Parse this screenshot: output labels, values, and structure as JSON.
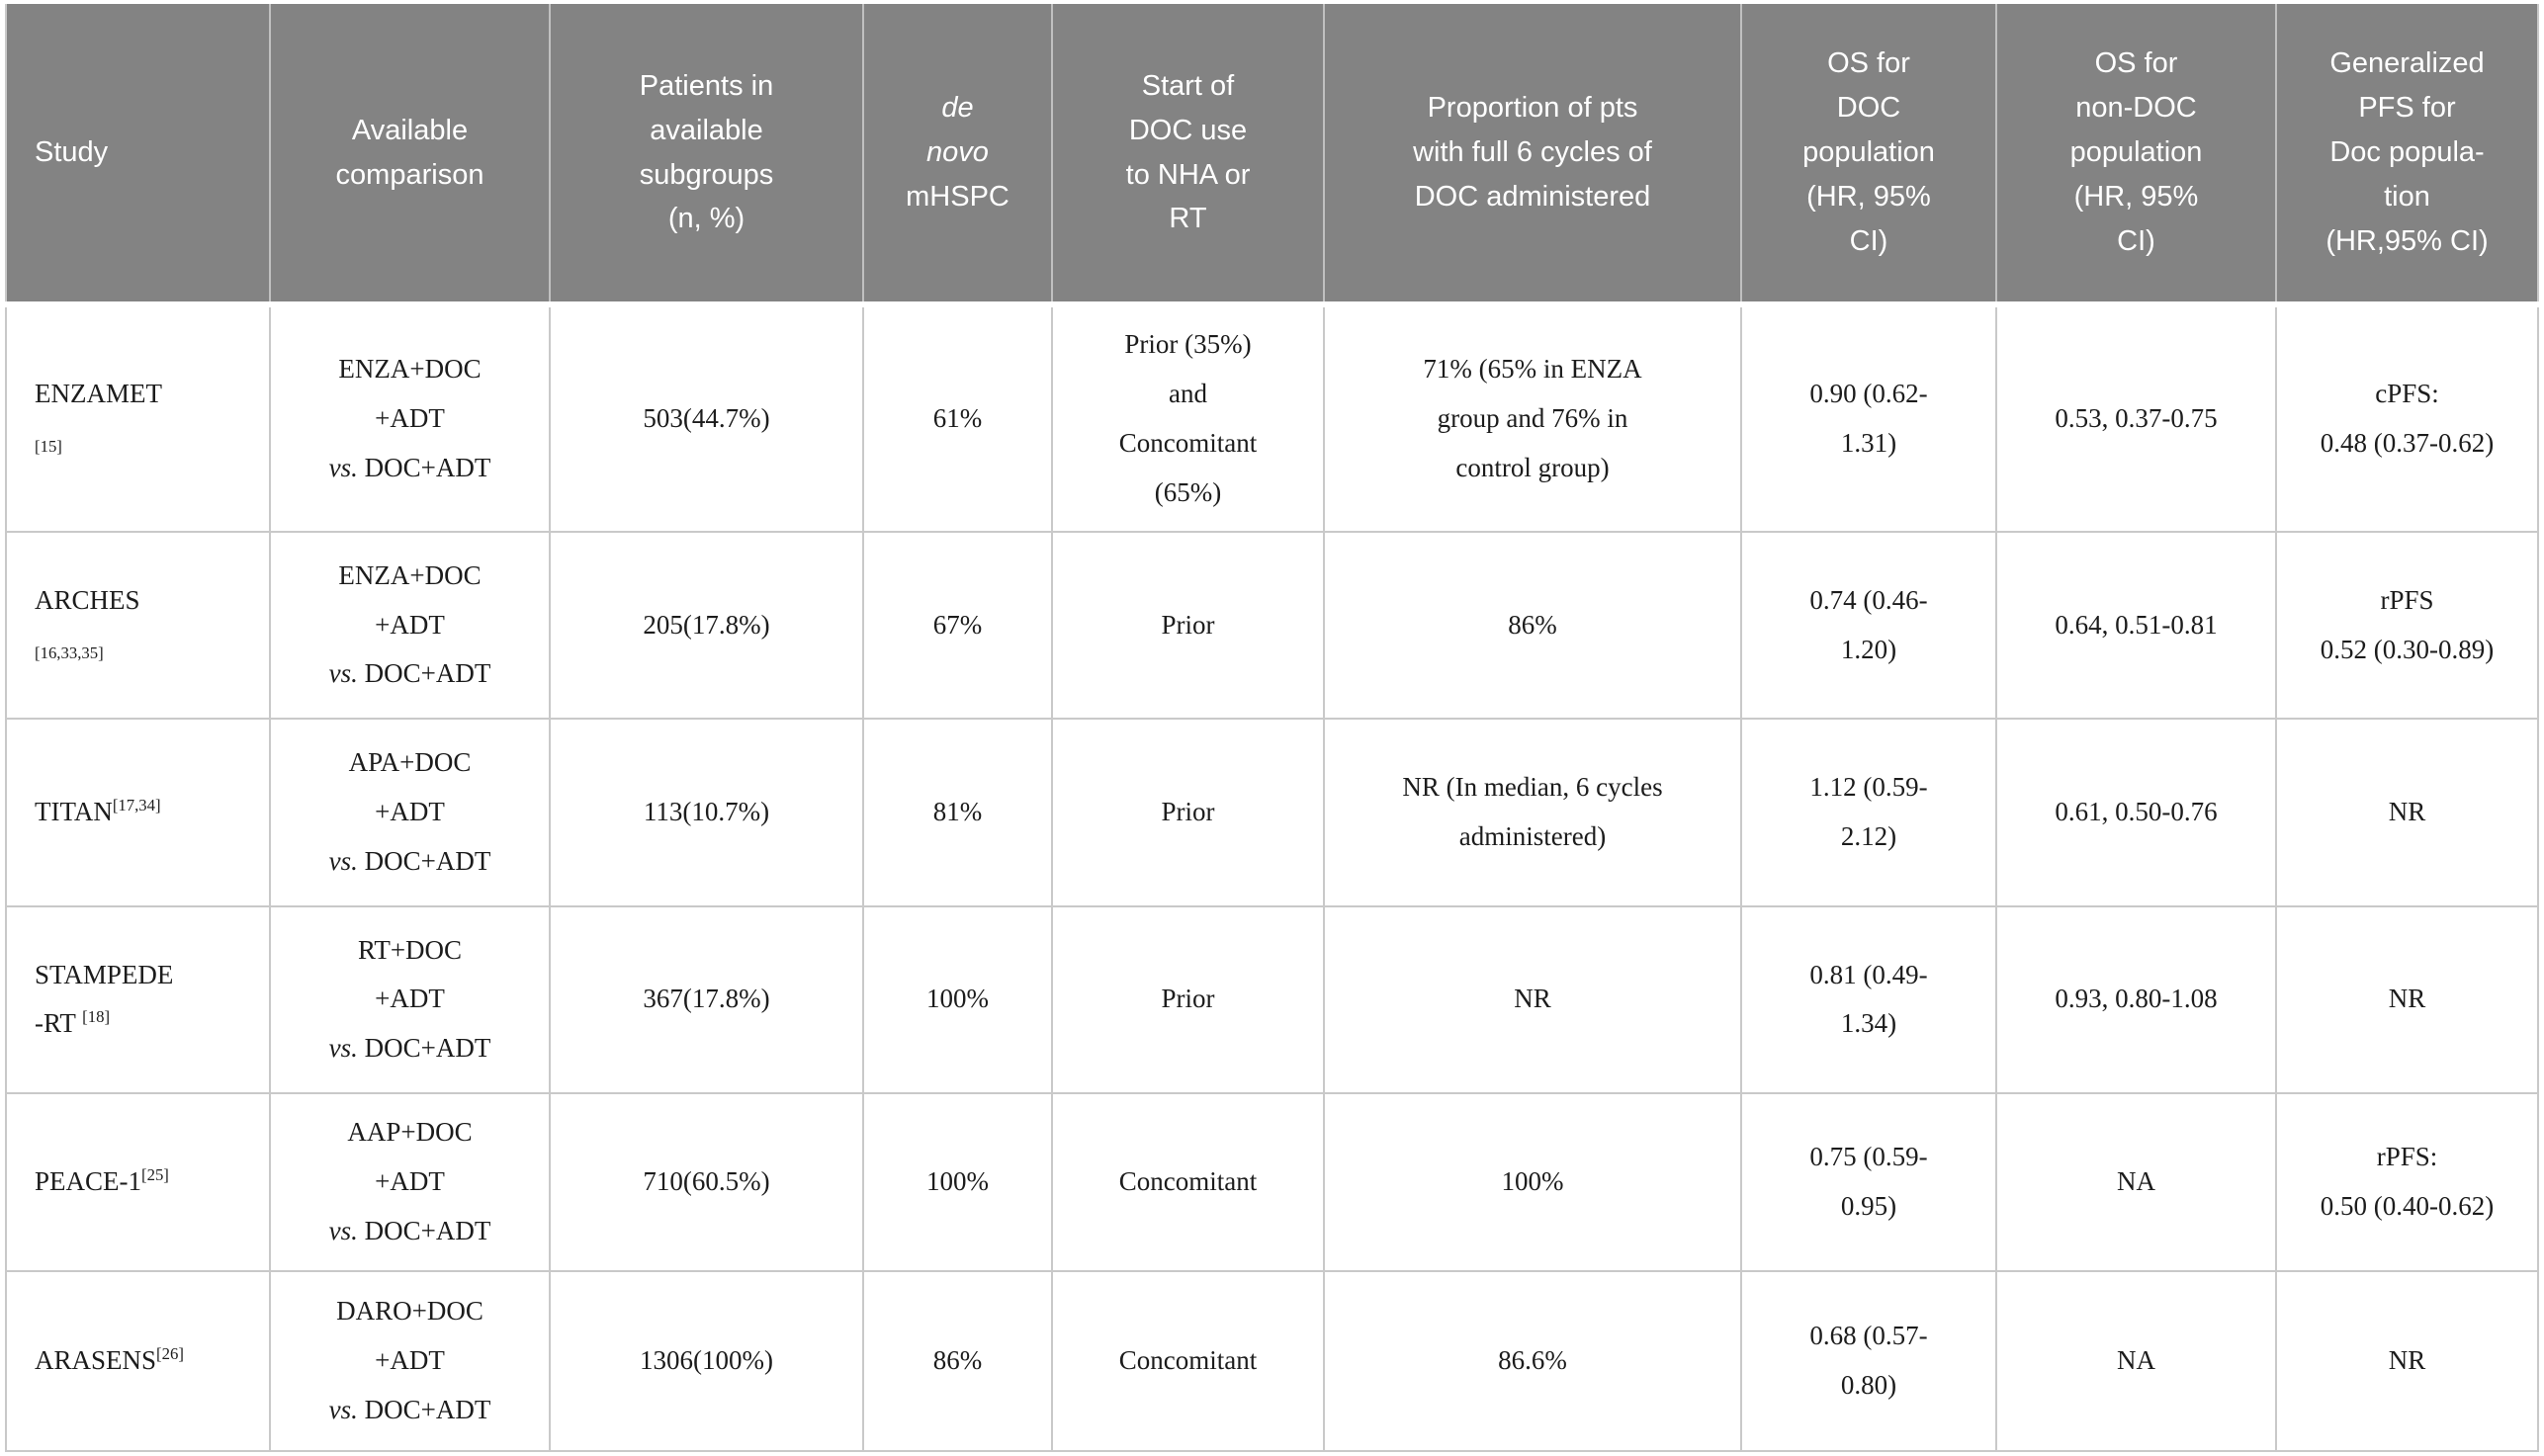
{
  "colors": {
    "header_bg": "#838383",
    "header_text": "#ffffff",
    "body_text": "#1c1c1c",
    "grid_line": "#c9c9c9"
  },
  "table": {
    "columns": [
      {
        "id": "study",
        "align": "left",
        "label_lines": [
          [
            {
              "t": "Study"
            }
          ]
        ]
      },
      {
        "id": "comparison",
        "label_lines": [
          [
            {
              "t": "Available"
            }
          ],
          [
            {
              "t": "comparison"
            }
          ]
        ]
      },
      {
        "id": "patients",
        "label_lines": [
          [
            {
              "t": "Patients in"
            }
          ],
          [
            {
              "t": "available"
            }
          ],
          [
            {
              "t": "subgroups"
            }
          ],
          [
            {
              "t": "(n, %)"
            }
          ]
        ]
      },
      {
        "id": "de-novo",
        "label_lines": [
          [
            {
              "t": "de",
              "style": "italic"
            }
          ],
          [
            {
              "t": "novo",
              "style": "italic"
            }
          ],
          [
            {
              "t": "mHSPC"
            }
          ]
        ]
      },
      {
        "id": "doc-start",
        "label_lines": [
          [
            {
              "t": "Start of"
            }
          ],
          [
            {
              "t": "DOC use"
            }
          ],
          [
            {
              "t": "to NHA or"
            }
          ],
          [
            {
              "t": "RT"
            }
          ]
        ]
      },
      {
        "id": "doc-cycles",
        "label_lines": [
          [
            {
              "t": "Proportion of pts"
            }
          ],
          [
            {
              "t": "with full 6 cycles of"
            }
          ],
          [
            {
              "t": "DOC administered"
            }
          ]
        ]
      },
      {
        "id": "os-doc",
        "label_lines": [
          [
            {
              "t": "OS for"
            }
          ],
          [
            {
              "t": "DOC"
            }
          ],
          [
            {
              "t": "population"
            }
          ],
          [
            {
              "t": "(HR, 95%"
            }
          ],
          [
            {
              "t": "CI)"
            }
          ]
        ]
      },
      {
        "id": "os-non-doc",
        "label_lines": [
          [
            {
              "t": "OS for"
            }
          ],
          [
            {
              "t": "non-DOC"
            }
          ],
          [
            {
              "t": "population"
            }
          ],
          [
            {
              "t": "(HR, 95%"
            }
          ],
          [
            {
              "t": "CI)"
            }
          ]
        ]
      },
      {
        "id": "pfs",
        "label_lines": [
          [
            {
              "t": "Generalized"
            }
          ],
          [
            {
              "t": "PFS for"
            }
          ],
          [
            {
              "t": "Doc popula-"
            }
          ],
          [
            {
              "t": "tion"
            }
          ],
          [
            {
              "t": "(HR,95% CI)"
            }
          ]
        ]
      }
    ],
    "rows": [
      {
        "id": "enzamet",
        "cells": {
          "study": [
            [
              {
                "t": "ENZAMET"
              }
            ],
            [
              {
                "t": "[15]",
                "style": "small"
              }
            ]
          ],
          "comparison": [
            [
              {
                "t": "ENZA+DOC"
              }
            ],
            [
              {
                "t": "+ADT"
              }
            ],
            [
              {
                "t": "vs.",
                "style": "italic"
              },
              {
                "t": " DOC+ADT"
              }
            ]
          ],
          "patients": [
            [
              {
                "t": "503(44.7%)"
              }
            ]
          ],
          "de-novo": [
            [
              {
                "t": "61%"
              }
            ]
          ],
          "doc-start": [
            [
              {
                "t": "Prior (35%)"
              }
            ],
            [
              {
                "t": "and"
              }
            ],
            [
              {
                "t": "Concomitant"
              }
            ],
            [
              {
                "t": "(65%)"
              }
            ]
          ],
          "doc-cycles": [
            [
              {
                "t": "71% (65% in ENZA"
              }
            ],
            [
              {
                "t": "group and 76% in"
              }
            ],
            [
              {
                "t": "control group)"
              }
            ]
          ],
          "os-doc": [
            [
              {
                "t": "0.90 (0.62-"
              }
            ],
            [
              {
                "t": "1.31)"
              }
            ]
          ],
          "os-non-doc": [
            [
              {
                "t": "0.53, 0.37-0.75"
              }
            ]
          ],
          "pfs": [
            [
              {
                "t": "cPFS:"
              }
            ],
            [
              {
                "t": "0.48 (0.37-0.62)"
              }
            ]
          ]
        }
      },
      {
        "id": "arches",
        "cells": {
          "study": [
            [
              {
                "t": "ARCHES"
              }
            ],
            [
              {
                "t": "[16,33,35]",
                "style": "small"
              }
            ]
          ],
          "comparison": [
            [
              {
                "t": "ENZA+DOC"
              }
            ],
            [
              {
                "t": "+ADT"
              }
            ],
            [
              {
                "t": "vs.",
                "style": "italic"
              },
              {
                "t": " DOC+ADT"
              }
            ]
          ],
          "patients": [
            [
              {
                "t": "205(17.8%)"
              }
            ]
          ],
          "de-novo": [
            [
              {
                "t": "67%"
              }
            ]
          ],
          "doc-start": [
            [
              {
                "t": "Prior"
              }
            ]
          ],
          "doc-cycles": [
            [
              {
                "t": "86%"
              }
            ]
          ],
          "os-doc": [
            [
              {
                "t": "0.74 (0.46-"
              }
            ],
            [
              {
                "t": "1.20)"
              }
            ]
          ],
          "os-non-doc": [
            [
              {
                "t": "0.64, 0.51-0.81"
              }
            ]
          ],
          "pfs": [
            [
              {
                "t": "rPFS"
              }
            ],
            [
              {
                "t": "0.52 (0.30-0.89)"
              }
            ]
          ]
        }
      },
      {
        "id": "titan",
        "cells": {
          "study": [
            [
              {
                "t": "TITAN"
              },
              {
                "t": "[17,34]",
                "style": "sup"
              }
            ]
          ],
          "comparison": [
            [
              {
                "t": "APA+DOC"
              }
            ],
            [
              {
                "t": "+ADT"
              }
            ],
            [
              {
                "t": "vs.",
                "style": "italic"
              },
              {
                "t": " DOC+ADT"
              }
            ]
          ],
          "patients": [
            [
              {
                "t": "113(10.7%)"
              }
            ]
          ],
          "de-novo": [
            [
              {
                "t": "81%"
              }
            ]
          ],
          "doc-start": [
            [
              {
                "t": "Prior"
              }
            ]
          ],
          "doc-cycles": [
            [
              {
                "t": "NR (In median, 6 cycles"
              }
            ],
            [
              {
                "t": "administered)"
              }
            ]
          ],
          "os-doc": [
            [
              {
                "t": "1.12 (0.59-"
              }
            ],
            [
              {
                "t": "2.12)"
              }
            ]
          ],
          "os-non-doc": [
            [
              {
                "t": "0.61, 0.50-0.76"
              }
            ]
          ],
          "pfs": [
            [
              {
                "t": "NR"
              }
            ]
          ]
        }
      },
      {
        "id": "stampede-rt",
        "cells": {
          "study": [
            [
              {
                "t": "STAMPEDE"
              }
            ],
            [
              {
                "t": "-RT "
              },
              {
                "t": "[18]",
                "style": "sup"
              }
            ]
          ],
          "comparison": [
            [
              {
                "t": "RT+DOC"
              }
            ],
            [
              {
                "t": "+ADT"
              }
            ],
            [
              {
                "t": "vs.",
                "style": "italic"
              },
              {
                "t": " DOC+ADT"
              }
            ]
          ],
          "patients": [
            [
              {
                "t": "367(17.8%)"
              }
            ]
          ],
          "de-novo": [
            [
              {
                "t": "100%"
              }
            ]
          ],
          "doc-start": [
            [
              {
                "t": "Prior"
              }
            ]
          ],
          "doc-cycles": [
            [
              {
                "t": "NR"
              }
            ]
          ],
          "os-doc": [
            [
              {
                "t": "0.81 (0.49-"
              }
            ],
            [
              {
                "t": "1.34)"
              }
            ]
          ],
          "os-non-doc": [
            [
              {
                "t": "0.93, 0.80-1.08"
              }
            ]
          ],
          "pfs": [
            [
              {
                "t": "NR"
              }
            ]
          ]
        }
      },
      {
        "id": "peace-1",
        "cells": {
          "study": [
            [
              {
                "t": "PEACE-1"
              },
              {
                "t": "[25]",
                "style": "sup"
              }
            ]
          ],
          "comparison": [
            [
              {
                "t": "AAP+DOC"
              }
            ],
            [
              {
                "t": "+ADT"
              }
            ],
            [
              {
                "t": "vs.",
                "style": "italic"
              },
              {
                "t": " DOC+ADT"
              }
            ]
          ],
          "patients": [
            [
              {
                "t": "710(60.5%)"
              }
            ]
          ],
          "de-novo": [
            [
              {
                "t": "100%"
              }
            ]
          ],
          "doc-start": [
            [
              {
                "t": "Concomitant"
              }
            ]
          ],
          "doc-cycles": [
            [
              {
                "t": "100%"
              }
            ]
          ],
          "os-doc": [
            [
              {
                "t": "0.75 (0.59-"
              }
            ],
            [
              {
                "t": "0.95)"
              }
            ]
          ],
          "os-non-doc": [
            [
              {
                "t": "NA"
              }
            ]
          ],
          "pfs": [
            [
              {
                "t": "rPFS:"
              }
            ],
            [
              {
                "t": "0.50 (0.40-0.62)"
              }
            ]
          ]
        }
      },
      {
        "id": "arasens",
        "cells": {
          "study": [
            [
              {
                "t": "ARASENS"
              },
              {
                "t": "[26]",
                "style": "sup"
              }
            ]
          ],
          "comparison": [
            [
              {
                "t": "DARO+DOC"
              }
            ],
            [
              {
                "t": "+ADT"
              }
            ],
            [
              {
                "t": "vs.",
                "style": "italic"
              },
              {
                "t": " DOC+ADT"
              }
            ]
          ],
          "patients": [
            [
              {
                "t": "1306(100%)"
              }
            ]
          ],
          "de-novo": [
            [
              {
                "t": "86%"
              }
            ]
          ],
          "doc-start": [
            [
              {
                "t": "Concomitant"
              }
            ]
          ],
          "doc-cycles": [
            [
              {
                "t": "86.6%"
              }
            ]
          ],
          "os-doc": [
            [
              {
                "t": "0.68 (0.57-"
              }
            ],
            [
              {
                "t": "0.80)"
              }
            ]
          ],
          "os-non-doc": [
            [
              {
                "t": "NA"
              }
            ]
          ],
          "pfs": [
            [
              {
                "t": "NR"
              }
            ]
          ]
        }
      }
    ]
  }
}
